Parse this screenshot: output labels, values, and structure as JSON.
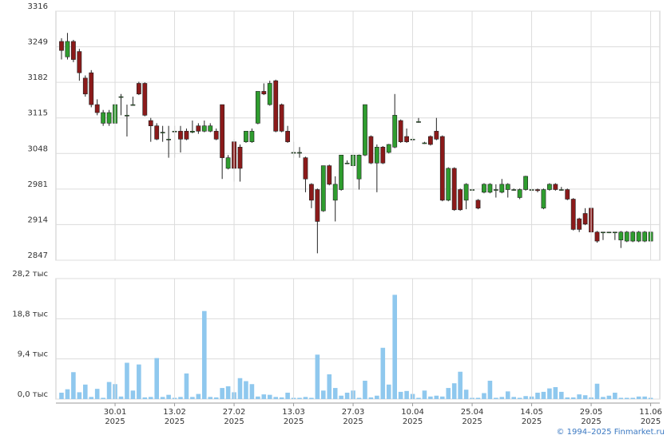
{
  "chart_data": [
    {
      "type": "candlestick",
      "open": [
        3259,
        3230,
        3259,
        3240,
        3190,
        3200,
        3140,
        3105,
        3105,
        3105,
        3155,
        3120,
        3140,
        3180,
        3180,
        3110,
        3100,
        3088,
        3075,
        3090,
        3090,
        3090,
        3088,
        3100,
        3090,
        3090,
        3090,
        3140,
        3020,
        3070,
        3060,
        3070,
        3070,
        3105,
        3165,
        3140,
        3185,
        3140,
        3090,
        3050,
        3050,
        3040,
        2990,
        2980,
        2940,
        3025,
        2960,
        2980,
        3030,
        3025,
        3000,
        3045,
        3080,
        3030,
        3060,
        3050,
        3060,
        3110,
        3080,
        3075,
        3108,
        3068,
        3080,
        3090,
        3080,
        2960,
        3020,
        2980,
        2960,
        2980,
        2960,
        2975,
        2975,
        2980,
        2975,
        2980,
        2980,
        2965,
        2980,
        2980,
        2980,
        2945,
        2980,
        2990,
        2980,
        2980,
        2962,
        2925,
        2935,
        2945,
        2900,
        2900,
        2900,
        2900,
        2885,
        2883,
        2883,
        2883,
        2883,
        2883
      ],
      "high": [
        3265,
        3275,
        3262,
        3245,
        3195,
        3205,
        3150,
        3130,
        3130,
        3140,
        3160,
        3140,
        3155,
        3183,
        3182,
        3115,
        3105,
        3100,
        3100,
        3100,
        3100,
        3095,
        3110,
        3105,
        3110,
        3105,
        3095,
        3140,
        3045,
        3075,
        3065,
        3090,
        3095,
        3165,
        3180,
        3185,
        3187,
        3142,
        3100,
        3070,
        3060,
        3042,
        2992,
        2982,
        3025,
        3027,
        3005,
        3045,
        3035,
        3045,
        3046,
        3140,
        3082,
        3065,
        3062,
        3066,
        3160,
        3112,
        3095,
        3080,
        3115,
        3070,
        3082,
        3115,
        3082,
        3022,
        3022,
        2982,
        2992,
        2982,
        2962,
        2992,
        2992,
        2990,
        3000,
        2992,
        2982,
        2982,
        3006,
        2982,
        2982,
        2982,
        2992,
        2992,
        2985,
        2982,
        2964,
        2927,
        2945,
        2947,
        2902,
        2900,
        2900,
        2900,
        2902,
        2902,
        2902,
        2902,
        2902,
        2902
      ],
      "low": [
        3225,
        3225,
        3220,
        3185,
        3155,
        3135,
        3120,
        3100,
        3100,
        3105,
        3120,
        3080,
        3138,
        3158,
        3118,
        3070,
        3073,
        3070,
        3040,
        3040,
        3050,
        3073,
        3086,
        3085,
        3088,
        3088,
        3073,
        3000,
        3018,
        2995,
        2995,
        3068,
        3068,
        3103,
        3158,
        3138,
        3088,
        3088,
        3068,
        3040,
        3040,
        2975,
        2945,
        2860,
        2938,
        2988,
        2920,
        2978,
        3028,
        3023,
        2980,
        3043,
        3028,
        2975,
        3028,
        3048,
        3058,
        3068,
        3068,
        3070,
        3106,
        3066,
        3063,
        3073,
        2958,
        2958,
        2940,
        2940,
        2943,
        2978,
        2943,
        2973,
        2973,
        2965,
        2973,
        2965,
        2978,
        2962,
        2978,
        2978,
        2975,
        2943,
        2978,
        2978,
        2978,
        2960,
        2903,
        2900,
        2913,
        2898,
        2880,
        2885,
        2898,
        2885,
        2870,
        2881,
        2881,
        2881,
        2881,
        2881
      ],
      "close": [
        3242,
        3259,
        3225,
        3200,
        3160,
        3140,
        3125,
        3125,
        3125,
        3140,
        3155,
        3120,
        3140,
        3160,
        3120,
        3100,
        3075,
        3088,
        3075,
        3090,
        3075,
        3075,
        3090,
        3090,
        3100,
        3100,
        3075,
        3040,
        3040,
        3020,
        3020,
        3090,
        3090,
        3165,
        3160,
        3180,
        3090,
        3090,
        3070,
        3050,
        3050,
        3000,
        2960,
        2920,
        3025,
        2990,
        2990,
        3045,
        3030,
        3045,
        3045,
        3140,
        3030,
        3060,
        3030,
        3065,
        3120,
        3070,
        3070,
        3075,
        3108,
        3068,
        3065,
        3075,
        2960,
        3020,
        2942,
        2942,
        2990,
        2980,
        2945,
        2990,
        2990,
        2980,
        2990,
        2990,
        2980,
        2980,
        3005,
        2980,
        2978,
        2980,
        2990,
        2980,
        2980,
        2962,
        2905,
        2905,
        2915,
        2900,
        2883,
        2900,
        2900,
        2900,
        2900,
        2900,
        2900,
        2900,
        2900,
        2900
      ],
      "up_color": "#2f9d2f",
      "down_color": "#8b1a1a",
      "ylim": [
        2847,
        3316
      ],
      "yticks": [
        2847,
        2914,
        2981,
        3048,
        3115,
        3182,
        3249,
        3316
      ],
      "grid": true
    },
    {
      "type": "bar",
      "values": [
        1.5,
        2.3,
        6.3,
        1.6,
        3.4,
        0.5,
        2.4,
        0.3,
        4.0,
        3.5,
        0.6,
        8.5,
        2.0,
        8.1,
        0.4,
        0.5,
        9.6,
        0.5,
        1.0,
        0.3,
        0.5,
        6.0,
        0.5,
        1.2,
        20.6,
        0.5,
        0.4,
        2.6,
        3.0,
        1.6,
        4.9,
        4.2,
        3.5,
        0.6,
        1.1,
        1.0,
        0.5,
        0.4,
        1.5,
        0.3,
        0.3,
        0.5,
        0.3,
        10.4,
        2.0,
        5.8,
        2.6,
        0.8,
        1.5,
        2.0,
        0.3,
        4.3,
        0.4,
        0.8,
        12.0,
        3.4,
        24.4,
        1.7,
        1.9,
        1.2,
        0.3,
        2.0,
        0.6,
        0.8,
        0.6,
        2.6,
        3.7,
        6.4,
        2.2,
        0.3,
        0.3,
        1.4,
        4.3,
        0.3,
        0.5,
        1.8,
        0.5,
        0.3,
        0.7,
        0.6,
        1.5,
        1.7,
        2.5,
        2.8,
        1.7,
        0.4,
        0.4,
        1.1,
        0.9,
        0.4,
        3.6,
        0.5,
        0.8,
        1.5,
        0.3,
        0.3,
        0.3,
        0.6,
        0.6,
        0.3
      ],
      "categories": [
        null,
        null,
        null,
        null,
        null,
        null,
        null,
        null,
        null,
        [
          "30.01",
          "2025"
        ],
        null,
        null,
        null,
        null,
        null,
        null,
        null,
        null,
        null,
        [
          "13.02",
          "2025"
        ],
        null,
        null,
        null,
        null,
        null,
        null,
        null,
        null,
        null,
        [
          "27.02",
          "2025"
        ],
        null,
        null,
        null,
        null,
        null,
        null,
        null,
        null,
        null,
        [
          "13.03",
          "2025"
        ],
        null,
        null,
        null,
        null,
        null,
        null,
        null,
        null,
        null,
        [
          "27.03",
          "2025"
        ],
        null,
        null,
        null,
        null,
        null,
        null,
        null,
        null,
        null,
        [
          "10.04",
          "2025"
        ],
        null,
        null,
        null,
        null,
        null,
        null,
        null,
        null,
        null,
        [
          "25.04",
          "2025"
        ],
        null,
        null,
        null,
        null,
        null,
        null,
        null,
        null,
        null,
        [
          "14.05",
          "2025"
        ],
        null,
        null,
        null,
        null,
        null,
        null,
        null,
        null,
        null,
        [
          "29.05",
          "2025"
        ],
        null,
        null,
        null,
        null,
        null,
        null,
        null,
        null,
        null,
        [
          "11.06",
          "2025"
        ]
      ],
      "color": "#8fc8ee",
      "ylim": [
        0,
        28.2
      ],
      "yticks": [
        {
          "value": 0,
          "label": "0,0 тыс"
        },
        {
          "value": 9.4,
          "label": "9,4 тыс"
        },
        {
          "value": 18.8,
          "label": "18,8 тыс"
        },
        {
          "value": 28.2,
          "label": "28,2 тыс"
        }
      ],
      "grid": true
    }
  ],
  "credit": "© 1994–2025 Finmarket.ru"
}
